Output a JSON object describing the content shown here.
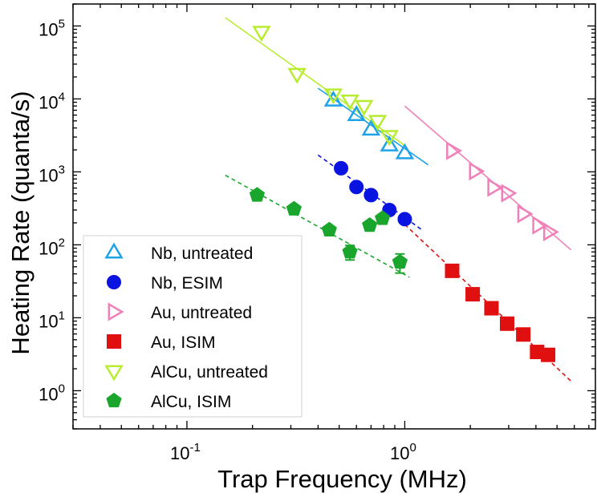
{
  "chart_data": {
    "type": "scatter",
    "xscale": "log",
    "yscale": "log",
    "xlabel": "Trap Frequency (MHz)",
    "ylabel": "Heating Rate (quanta/s)",
    "xlim": [
      0.03,
      7.5
    ],
    "ylim": [
      0.3,
      200000
    ],
    "grid": false,
    "legend_position": "lower-left",
    "x_tick_labels": [
      {
        "value": 0.1,
        "base": "10",
        "exp": "-1"
      },
      {
        "value": 1,
        "base": "10",
        "exp": "0"
      }
    ],
    "y_tick_labels": [
      {
        "value": 1,
        "base": "10",
        "exp": "0"
      },
      {
        "value": 10,
        "base": "10",
        "exp": "1"
      },
      {
        "value": 100,
        "base": "10",
        "exp": "2"
      },
      {
        "value": 1000,
        "base": "10",
        "exp": "3"
      },
      {
        "value": 10000,
        "base": "10",
        "exp": "4"
      },
      {
        "value": 100000,
        "base": "10",
        "exp": "5"
      }
    ],
    "series": [
      {
        "name": "Nb, untreated",
        "marker": "triangle-up-open",
        "color": "#1fa2e6",
        "x": [
          0.47,
          0.6,
          0.7,
          0.85,
          1.0
        ],
        "y": [
          9500,
          6000,
          3800,
          2300,
          1800
        ],
        "fit": {
          "style": "solid",
          "x": [
            0.4,
            1.28
          ],
          "y": [
            14000,
            1250
          ]
        }
      },
      {
        "name": "Nb, ESIM",
        "marker": "circle-filled",
        "color": "#0a14e0",
        "x": [
          0.51,
          0.6,
          0.7,
          0.85,
          1.0
        ],
        "y": [
          1120,
          620,
          480,
          300,
          225
        ],
        "fit": {
          "style": "dashed",
          "x": [
            0.4,
            1.2
          ],
          "y": [
            1700,
            160
          ]
        }
      },
      {
        "name": "Au, untreated",
        "marker": "triangle-right-open",
        "color": "#f080b8",
        "x": [
          1.65,
          2.1,
          2.55,
          2.95,
          3.5,
          4.1,
          4.6
        ],
        "y": [
          1950,
          1020,
          610,
          510,
          265,
          185,
          150
        ],
        "fit": {
          "style": "solid",
          "x": [
            1.0,
            5.8
          ],
          "y": [
            8000,
            85
          ]
        }
      },
      {
        "name": "Au, ISIM",
        "marker": "square-filled",
        "color": "#e01010",
        "x": [
          1.65,
          2.05,
          2.5,
          2.95,
          3.5,
          4.05,
          4.55
        ],
        "y": [
          44,
          21,
          13.5,
          8.3,
          5.9,
          3.4,
          3.1
        ],
        "fit": {
          "style": "dashed",
          "x": [
            1.0,
            5.8
          ],
          "y": [
            190,
            1.35
          ]
        }
      },
      {
        "name": "AlCu, untreated",
        "marker": "triangle-down-open",
        "color": "#b8ec2e",
        "x": [
          0.22,
          0.32,
          0.47,
          0.56,
          0.65,
          0.75,
          0.85
        ],
        "y": [
          83000,
          22000,
          11500,
          9500,
          8000,
          5000,
          3100
        ],
        "fit": {
          "style": "solid",
          "x": [
            0.15,
            1.0
          ],
          "y": [
            130000,
            2300
          ]
        }
      },
      {
        "name": "AlCu, ISIM",
        "marker": "pentagon-filled",
        "color": "#1aa62c",
        "x": [
          0.21,
          0.31,
          0.45,
          0.56,
          0.69,
          0.79,
          0.95
        ],
        "y": [
          480,
          310,
          160,
          80,
          185,
          230,
          58
        ],
        "yerr": [
          0,
          0,
          0,
          18,
          0,
          0,
          17
        ],
        "fit": {
          "style": "dashed",
          "x": [
            0.15,
            1.05
          ],
          "y": [
            900,
            36
          ]
        }
      }
    ]
  }
}
